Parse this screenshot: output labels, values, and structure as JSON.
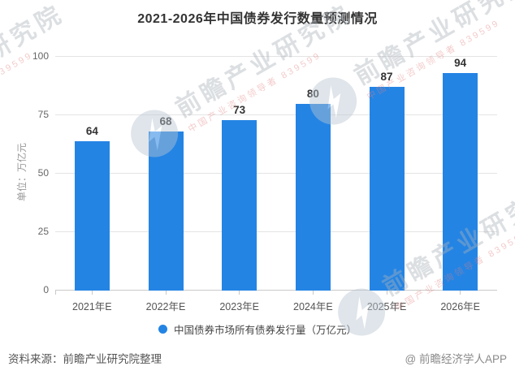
{
  "chart_data": {
    "type": "bar",
    "title": "2021-2026年中国债券发行数量预测情况",
    "categories": [
      "2021年E",
      "2022年E",
      "2023年E",
      "2024年E",
      "2025年E",
      "2026年E"
    ],
    "values": [
      64,
      68,
      73,
      80,
      87,
      94
    ],
    "xlabel": "",
    "ylabel": "单位：万亿元",
    "ylim": [
      0,
      100
    ],
    "yticks": [
      0,
      25,
      50,
      75,
      100
    ],
    "grid": true,
    "bar_color": "#2484e4",
    "value_label_color": "#333333",
    "legend": {
      "label": "中国债券市场所有债券发行量（万亿元）",
      "marker_color": "#2484e4",
      "position": "bottom"
    }
  },
  "footer": {
    "source": "资料来源：前瞻产业研究院整理",
    "credit": "@ 前瞻经济学人APP"
  },
  "watermark": {
    "brand": "前瞻产业研究院",
    "sub": "中国产业咨询领导者",
    "digits": "839599"
  }
}
